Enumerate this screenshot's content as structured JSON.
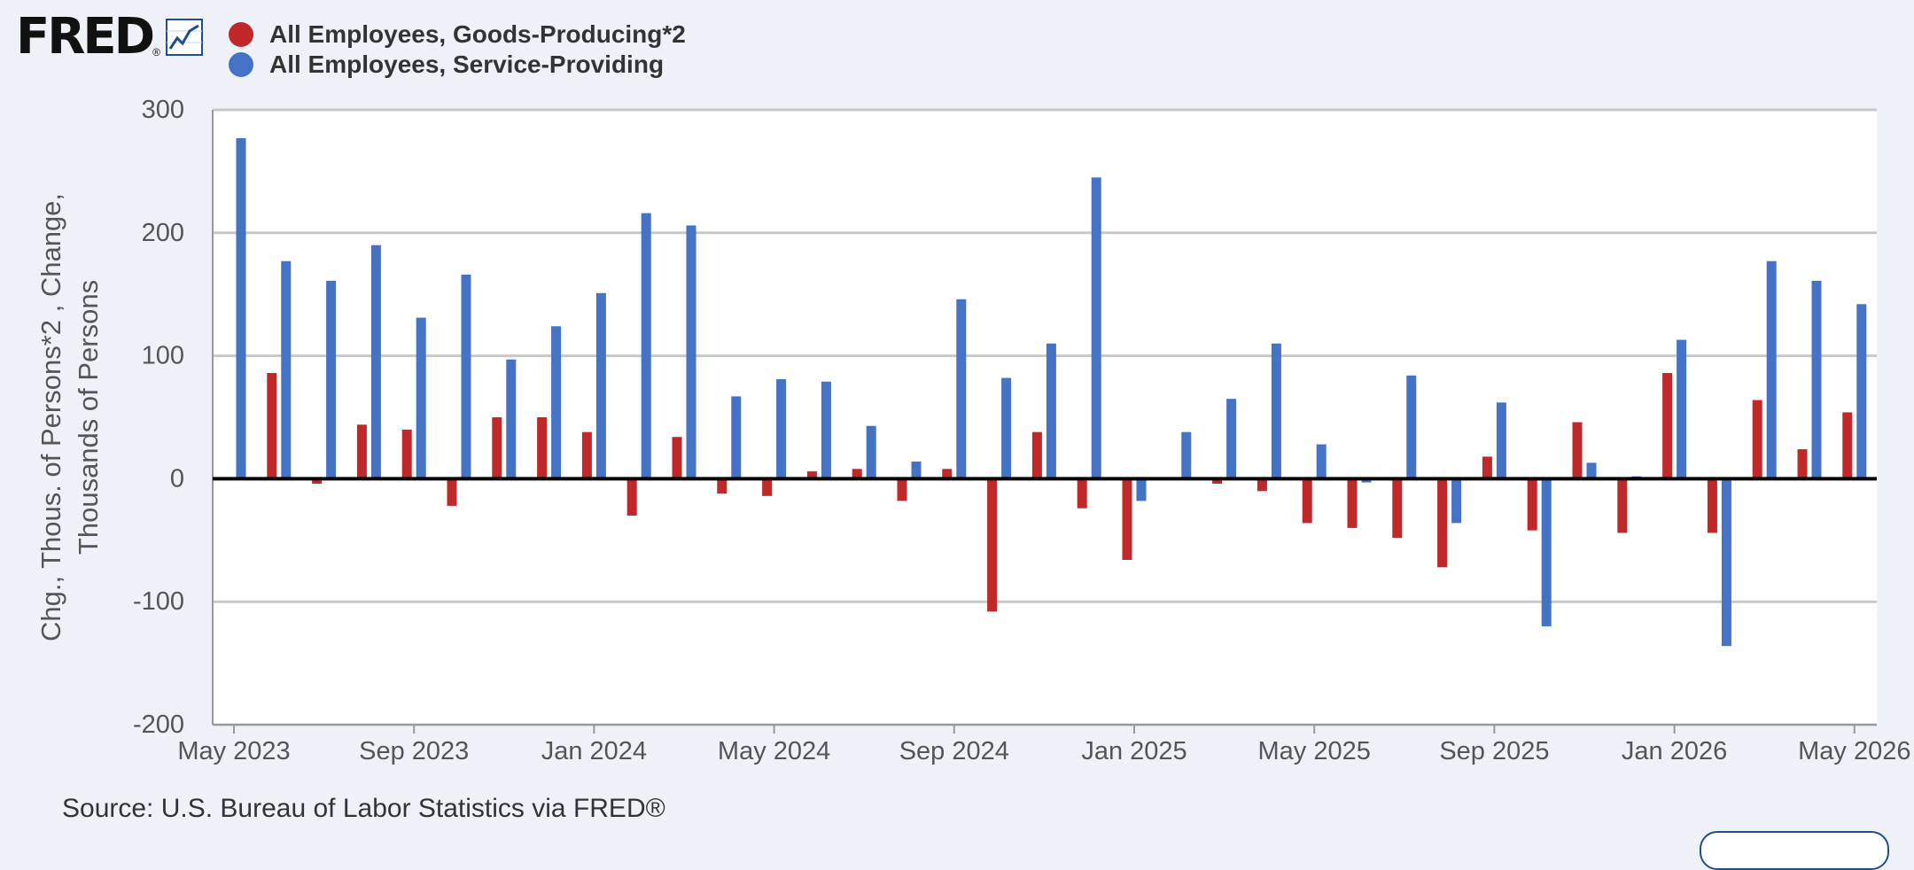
{
  "header": {
    "logo_text": "FRED",
    "logo_mark": "®",
    "logo_icon": "line-chart-icon"
  },
  "colors": {
    "goods": "#c0282a",
    "services": "#4472c4",
    "background": "#eef2f8",
    "plot_background": "#ffffff",
    "grid": "#c8c8c8",
    "zero_line": "#000000"
  },
  "chart_data": {
    "type": "bar",
    "title": "",
    "xlabel": "",
    "ylabel": "Chg., Thous. of Persons*2 , Change, Thousands of Persons",
    "ylabel_lines": [
      "Chg., Thous. of Persons*2 , Change,",
      "Thousands of Persons"
    ],
    "ylim": [
      -200,
      300
    ],
    "yticks": [
      300,
      200,
      100,
      0,
      -100,
      -200
    ],
    "grid": true,
    "legend_position": "top-left",
    "x_tick_labels": [
      "May 2023",
      "Sep 2023",
      "Jan 2024",
      "May 2024",
      "Sep 2024",
      "Jan 2025",
      "May 2025",
      "Sep 2025",
      "Jan 2026",
      "May 2026"
    ],
    "x_tick_indices": [
      0,
      4,
      8,
      12,
      16,
      20,
      24,
      28,
      32,
      36
    ],
    "categories": [
      "2023-05",
      "2023-06",
      "2023-07",
      "2023-08",
      "2023-09",
      "2023-10",
      "2023-11",
      "2023-12",
      "2024-01",
      "2024-02",
      "2024-03",
      "2024-04",
      "2024-05",
      "2024-06",
      "2024-07",
      "2024-08",
      "2024-09",
      "2024-10",
      "2024-11",
      "2024-12",
      "2025-01",
      "2025-02",
      "2025-03",
      "2025-04",
      "2025-05",
      "2025-06",
      "2025-07",
      "2025-08",
      "2025-09",
      "2025-10",
      "2025-11",
      "2025-12",
      "2026-01",
      "2026-02",
      "2026-03",
      "2026-04",
      "2026-05"
    ],
    "series": [
      {
        "name": "All Employees, Goods-Producing*2",
        "color": "#c0282a",
        "values": [
          null,
          86,
          -4,
          44,
          40,
          -22,
          50,
          50,
          38,
          -30,
          34,
          -12,
          -14,
          6,
          8,
          -18,
          8,
          -108,
          38,
          -24,
          -66,
          null,
          -4,
          -10,
          -36,
          -40,
          -48,
          -72,
          18,
          -42,
          46,
          -44,
          86,
          -44,
          64,
          24,
          54
        ]
      },
      {
        "name": "All Employees, Service-Providing",
        "color": "#4472c4",
        "values": [
          277,
          177,
          161,
          190,
          131,
          166,
          97,
          124,
          151,
          216,
          206,
          67,
          81,
          79,
          43,
          14,
          146,
          82,
          110,
          245,
          -18,
          38,
          65,
          110,
          28,
          -3,
          84,
          -36,
          62,
          -120,
          13,
          2,
          113,
          -136,
          177,
          161,
          142
        ]
      }
    ]
  },
  "footer": {
    "source": "Source: U.S. Bureau of Labor Statistics via FRED®"
  }
}
